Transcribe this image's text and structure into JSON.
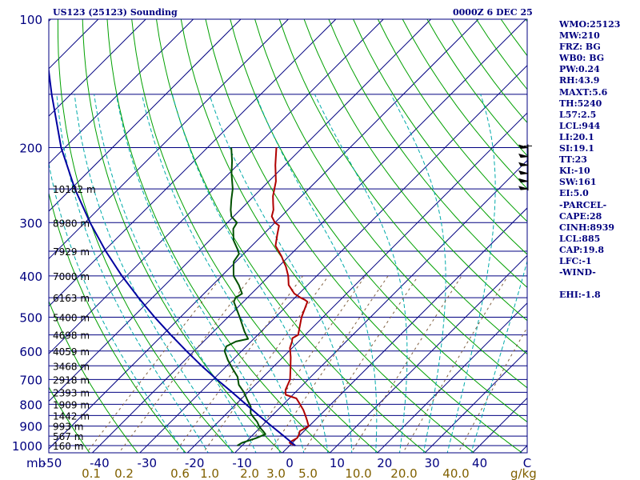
{
  "header": {
    "station": "US123 (25123) Sounding",
    "valid_time": "0000Z  6 DEC 25"
  },
  "indices": [
    "WMO:25123",
    "MW:210",
    "FRZ: BG",
    "WB0: BG",
    "PW:0.24",
    "RH:43.9",
    "MAXT:5.6",
    "TH:5240",
    "L57:2.5",
    "LCL:944",
    "LI:20.1",
    "SI:19.1",
    "TT:23",
    "KI:-10",
    "SW:161",
    "EI:5.0",
    "-PARCEL-",
    "CAPE:28",
    "CINH:8939",
    "LCL:885",
    "CAP:19.8",
    "LFC:-1",
    "-WIND-",
    "",
    "EHI:-1.8"
  ],
  "colors": {
    "frame": "#000080",
    "isobar": "#000080",
    "isotherm": "#000080",
    "dry_adiabat": "#00a000",
    "moist_adiabat": "#00aaaa",
    "mixing_ratio": "#806040",
    "temperature": "#b00000",
    "dewpoint": "#005000",
    "parcel": "#0000a0",
    "wind_barb": "#000000",
    "temp_axis_label": "#000080",
    "mixing_ratio_label": "#806000"
  },
  "chart_data": {
    "type": "line",
    "title": "US123 (25123) Sounding",
    "x_axis_unit": "C",
    "y_axis_unit": "mb",
    "mixing_ratio_unit": "g/kg",
    "pressure_range": [
      1000,
      100
    ],
    "temperature_range_at_1000mb": [
      -50,
      50
    ],
    "pressure_ticks": [
      {
        "p": 100,
        "label": "100"
      },
      {
        "p": 200,
        "label": "200"
      },
      {
        "p": 300,
        "label": "300"
      },
      {
        "p": 400,
        "label": "400"
      },
      {
        "p": 500,
        "label": "500"
      },
      {
        "p": 600,
        "label": "600"
      },
      {
        "p": 700,
        "label": "700"
      },
      {
        "p": 800,
        "label": "800"
      },
      {
        "p": 900,
        "label": "900"
      },
      {
        "p": 1000,
        "label": "1000"
      }
    ],
    "temperature_ticks": [
      {
        "t": -50,
        "label": "-50"
      },
      {
        "t": -40,
        "label": "-40"
      },
      {
        "t": -30,
        "label": "-30"
      },
      {
        "t": -20,
        "label": "-20"
      },
      {
        "t": -10,
        "label": "-10"
      },
      {
        "t": 0,
        "label": "0"
      },
      {
        "t": 10,
        "label": "10"
      },
      {
        "t": 20,
        "label": "20"
      },
      {
        "t": 30,
        "label": "30"
      },
      {
        "t": 40,
        "label": "40"
      }
    ],
    "mixing_ratio_ticks": [
      {
        "w": 0.1,
        "label": "0.1"
      },
      {
        "w": 0.2,
        "label": "0.2"
      },
      {
        "w": 0.6,
        "label": "0.6"
      },
      {
        "w": 1.0,
        "label": "1.0"
      },
      {
        "w": 2.0,
        "label": "2.0"
      },
      {
        "w": 3.0,
        "label": "3.0"
      },
      {
        "w": 5.0,
        "label": "5.0"
      },
      {
        "w": 10.0,
        "label": "10.0"
      },
      {
        "w": 20.0,
        "label": "20.0"
      },
      {
        "w": 40.0,
        "label": "40.0"
      }
    ],
    "height_labels": [
      {
        "p": 250,
        "label": "10182 m"
      },
      {
        "p": 300,
        "label": "8980 m"
      },
      {
        "p": 350,
        "label": "7929 m"
      },
      {
        "p": 400,
        "label": "7000 m"
      },
      {
        "p": 450,
        "label": "6163 m"
      },
      {
        "p": 500,
        "label": "5400 m"
      },
      {
        "p": 550,
        "label": "4698 m"
      },
      {
        "p": 600,
        "label": "4059 m"
      },
      {
        "p": 650,
        "label": "3468 m"
      },
      {
        "p": 700,
        "label": "2918 m"
      },
      {
        "p": 750,
        "label": "2393 m"
      },
      {
        "p": 800,
        "label": "1909 m"
      },
      {
        "p": 850,
        "label": "1442 m"
      },
      {
        "p": 900,
        "label": "993 m"
      },
      {
        "p": 950,
        "label": "567 m"
      },
      {
        "p": 1000,
        "label": "160 m"
      }
    ],
    "series": [
      {
        "key": "temperature",
        "points": [
          [
            1000,
            1.2
          ],
          [
            985,
            -0.6
          ],
          [
            975,
            -0.5
          ],
          [
            960,
            0.0
          ],
          [
            940,
            -0.4
          ],
          [
            925,
            -0.9
          ],
          [
            900,
            -0.1
          ],
          [
            875,
            -1.5
          ],
          [
            850,
            -3.0
          ],
          [
            825,
            -4.6
          ],
          [
            800,
            -6.5
          ],
          [
            775,
            -8.5
          ],
          [
            760,
            -11.5
          ],
          [
            740,
            -12.6
          ],
          [
            700,
            -13.8
          ],
          [
            660,
            -16.0
          ],
          [
            620,
            -18.4
          ],
          [
            590,
            -20.5
          ],
          [
            570,
            -21.4
          ],
          [
            560,
            -22.0
          ],
          [
            550,
            -21.5
          ],
          [
            500,
            -24.5
          ],
          [
            460,
            -26.5
          ],
          [
            455,
            -27.5
          ],
          [
            450,
            -28.8
          ],
          [
            440,
            -31.0
          ],
          [
            420,
            -34.0
          ],
          [
            400,
            -36.0
          ],
          [
            380,
            -38.5
          ],
          [
            370,
            -40.0
          ],
          [
            360,
            -41.5
          ],
          [
            340,
            -45.0
          ],
          [
            320,
            -47.0
          ],
          [
            305,
            -48.5
          ],
          [
            300,
            -50.0
          ],
          [
            290,
            -52.0
          ],
          [
            280,
            -53.0
          ],
          [
            270,
            -54.5
          ],
          [
            260,
            -56.0
          ],
          [
            240,
            -58.5
          ],
          [
            220,
            -62.0
          ],
          [
            200,
            -65.5
          ]
        ]
      },
      {
        "key": "dewpoint",
        "points": [
          [
            1000,
            -11.0
          ],
          [
            985,
            -10.6
          ],
          [
            960,
            -8.6
          ],
          [
            940,
            -7.5
          ],
          [
            925,
            -8.6
          ],
          [
            905,
            -10.2
          ],
          [
            880,
            -11.8
          ],
          [
            860,
            -13.4
          ],
          [
            840,
            -15.0
          ],
          [
            810,
            -16.4
          ],
          [
            780,
            -18.6
          ],
          [
            750,
            -20.8
          ],
          [
            720,
            -23.5
          ],
          [
            690,
            -25.4
          ],
          [
            660,
            -28.2
          ],
          [
            630,
            -31.0
          ],
          [
            600,
            -33.6
          ],
          [
            585,
            -34.2
          ],
          [
            570,
            -33.2
          ],
          [
            562,
            -31.2
          ],
          [
            540,
            -33.5
          ],
          [
            500,
            -37.5
          ],
          [
            460,
            -42.0
          ],
          [
            450,
            -42.5
          ],
          [
            440,
            -42.0
          ],
          [
            420,
            -44.5
          ],
          [
            400,
            -47.5
          ],
          [
            380,
            -49.5
          ],
          [
            370,
            -50.5
          ],
          [
            355,
            -51.0
          ],
          [
            345,
            -52.5
          ],
          [
            330,
            -55.0
          ],
          [
            310,
            -57.5
          ],
          [
            300,
            -58.0
          ],
          [
            290,
            -60.5
          ],
          [
            280,
            -62.0
          ],
          [
            265,
            -64.0
          ],
          [
            250,
            -66.0
          ],
          [
            230,
            -69.5
          ],
          [
            215,
            -72.0
          ],
          [
            200,
            -75.0
          ]
        ]
      },
      {
        "key": "parcel",
        "points": [
          [
            1000,
            1.2
          ],
          [
            950,
            -3.2
          ],
          [
            900,
            -7.9
          ],
          [
            850,
            -12.8
          ],
          [
            800,
            -17.9
          ],
          [
            750,
            -23.3
          ],
          [
            700,
            -29.2
          ],
          [
            650,
            -35.3
          ],
          [
            600,
            -41.6
          ],
          [
            550,
            -48.3
          ],
          [
            500,
            -55.4
          ],
          [
            450,
            -62.9
          ],
          [
            400,
            -71.0
          ],
          [
            350,
            -79.6
          ],
          [
            300,
            -88.9
          ],
          [
            250,
            -99.2
          ],
          [
            200,
            -110.8
          ],
          [
            150,
            -124.0
          ],
          [
            125,
            -132.0
          ]
        ]
      }
    ],
    "wind_barbs": [
      {
        "p": 200
      },
      {
        "p": 210
      },
      {
        "p": 220
      },
      {
        "p": 230
      },
      {
        "p": 240
      },
      {
        "p": 250
      }
    ]
  }
}
